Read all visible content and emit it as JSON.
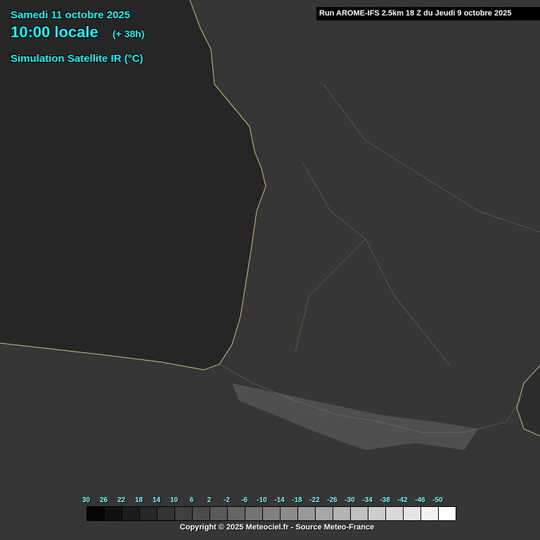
{
  "header": {
    "date": "Samedi 11 octobre 2025",
    "time": "10:00 locale",
    "lead": "(+ 38h)",
    "product": "Simulation Satellite IR (°C)",
    "run": "Run AROME-IFS 2.5km 18 Z du Jeudi 9 octobre 2025"
  },
  "legend": {
    "labels": [
      "30",
      "26",
      "22",
      "18",
      "14",
      "10",
      "6",
      "2",
      "-2",
      "-6",
      "-10",
      "-14",
      "-18",
      "-22",
      "-26",
      "-30",
      "-34",
      "-38",
      "-42",
      "-46",
      "-50"
    ],
    "colors": [
      "#050505",
      "#111111",
      "#1c1c1c",
      "#272727",
      "#333333",
      "#3f3f3f",
      "#4c4c4c",
      "#595959",
      "#666666",
      "#737373",
      "#808080",
      "#8c8c8c",
      "#999999",
      "#a6a6a6",
      "#b3b3b3",
      "#c0c0c0",
      "#cccccc",
      "#d8d8d8",
      "#e4e4e4",
      "#f0f0f0",
      "#ffffff"
    ]
  },
  "copyright": "Copyright © 2025 Meteociel.fr - Source Meteo-France",
  "map_colors": {
    "ocean": "#262626",
    "land": "#363636",
    "mountains": "#6a6a6a",
    "coastline": "#c8c080"
  }
}
